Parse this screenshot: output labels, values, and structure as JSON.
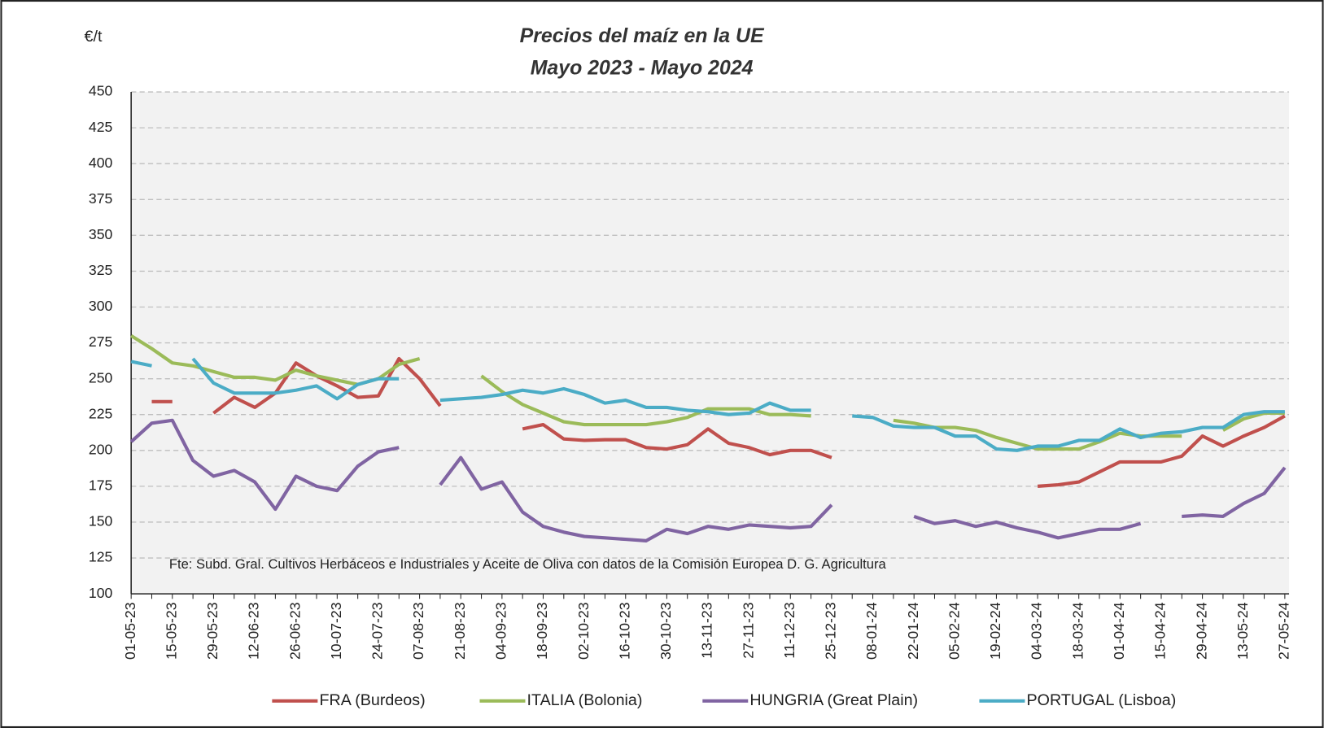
{
  "chart_data": {
    "type": "line",
    "title": "Precios del maíz en la UE",
    "subtitle": "Mayo 2023 - Mayo 2024",
    "y_label": "€/t",
    "annotation": "Fte: Subd. Gral. Cultivos Herbáceos e Industriales y Aceite de Oliva con datos de la Comisión Europea D. G. Agricultura",
    "categories": [
      "01-05-23",
      null,
      "15-05-23",
      null,
      "29-05-23",
      null,
      "12-06-23",
      null,
      "26-06-23",
      null,
      "10-07-23",
      null,
      "24-07-23",
      null,
      "07-08-23",
      null,
      "21-08-23",
      null,
      "04-09-23",
      null,
      "18-09-23",
      null,
      "02-10-23",
      null,
      "16-10-23",
      null,
      "30-10-23",
      null,
      "13-11-23",
      null,
      "27-11-23",
      null,
      "11-12-23",
      null,
      "25-12-23",
      null,
      "08-01-24",
      null,
      "22-01-24",
      null,
      "05-02-24",
      null,
      "19-02-24",
      null,
      "04-03-24",
      null,
      "18-03-24",
      null,
      "01-04-24",
      null,
      "15-04-24",
      null,
      "29-04-24",
      null,
      "13-05-24",
      null,
      "27-05-24"
    ],
    "series": [
      {
        "name": "FRA (Burdeos)",
        "color": "#c0504d",
        "values": [
          null,
          234,
          234,
          null,
          226,
          237,
          230,
          240,
          261,
          252,
          245,
          237,
          238,
          264,
          250,
          231,
          null,
          null,
          null,
          215,
          218,
          208,
          207,
          207.5,
          207.5,
          202,
          201,
          204,
          215,
          205,
          202,
          197,
          200,
          200,
          195,
          null,
          null,
          null,
          null,
          null,
          null,
          null,
          null,
          null,
          175,
          176,
          178,
          185,
          192,
          192,
          192,
          196,
          210,
          203,
          210,
          216,
          224
        ]
      },
      {
        "name": "ITALIA (Bolonia)",
        "color": "#9bbb59",
        "values": [
          280,
          271,
          261,
          259,
          255,
          251,
          251,
          249,
          256,
          252,
          249,
          246,
          250,
          260,
          264,
          null,
          null,
          252,
          241,
          232,
          226,
          220,
          218,
          218,
          218,
          218,
          220,
          223,
          229,
          229,
          229,
          225,
          225,
          224,
          null,
          null,
          null,
          221,
          219,
          216,
          216,
          214,
          209,
          205,
          201,
          201,
          201,
          206,
          212,
          210,
          210,
          210,
          null,
          214,
          222,
          226,
          226
        ]
      },
      {
        "name": "HUNGRIA (Great Plain)",
        "color": "#8064a2",
        "values": [
          206,
          219,
          221,
          193,
          182,
          186,
          178,
          159,
          182,
          175,
          172,
          189,
          199,
          202,
          null,
          176,
          195,
          173,
          178,
          157,
          147,
          143,
          140,
          139,
          138,
          137,
          145,
          142,
          147,
          145,
          148,
          147,
          146,
          147,
          162,
          null,
          null,
          null,
          154,
          149,
          151,
          147,
          150,
          146,
          143,
          139,
          142,
          145,
          145,
          149,
          null,
          154,
          155,
          154,
          163,
          170,
          188
        ]
      },
      {
        "name": "PORTUGAL (Lisboa)",
        "color": "#4bacc6",
        "values": [
          262,
          259,
          null,
          264,
          247,
          240,
          240,
          240,
          242,
          245,
          236,
          246,
          250,
          250,
          null,
          235,
          236,
          237,
          239,
          242,
          240,
          243,
          239,
          233,
          235,
          230,
          230,
          228,
          227,
          225,
          226,
          233,
          228,
          228,
          null,
          224,
          223,
          217,
          216,
          216,
          210,
          210,
          201,
          200,
          203,
          203,
          207,
          207,
          215,
          209,
          212,
          213,
          216,
          216,
          225,
          227,
          227
        ]
      }
    ],
    "ylim": [
      100,
      450
    ],
    "yticks": [
      100,
      125,
      150,
      175,
      200,
      225,
      250,
      275,
      300,
      325,
      350,
      375,
      400,
      425,
      450
    ],
    "grid": true
  }
}
